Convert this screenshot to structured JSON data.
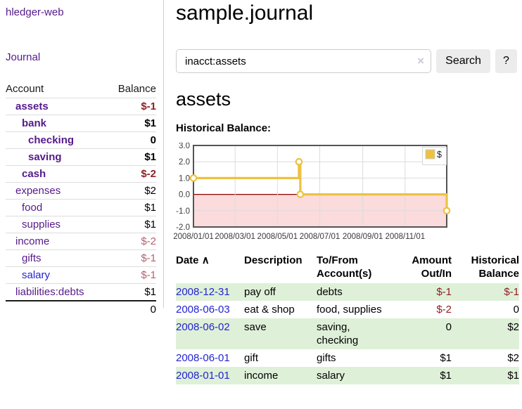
{
  "app": {
    "brand": "hledger-web"
  },
  "colors": {
    "link_purple": "#551a8b",
    "link_blue": "#2323d3",
    "neg_strong": "#8f1f27",
    "neg_soft": "#b2636e",
    "stripe_green": "#dff0d8",
    "series_gold": "#edc240"
  },
  "sidebar": {
    "nav_journal": "Journal",
    "table": {
      "headers": [
        "Account",
        "Balance"
      ],
      "accounts": [
        {
          "name": "assets",
          "balance": "$-1",
          "depth": 0,
          "bold": true,
          "value_tone": "neg_strong",
          "link_tone": "purple"
        },
        {
          "name": "bank",
          "balance": "$1",
          "depth": 1,
          "bold": true,
          "value_tone": "plain",
          "link_tone": "purple"
        },
        {
          "name": "checking",
          "balance": "0",
          "depth": 2,
          "bold": true,
          "value_tone": "plain",
          "link_tone": "purple"
        },
        {
          "name": "saving",
          "balance": "$1",
          "depth": 2,
          "bold": true,
          "value_tone": "plain",
          "link_tone": "purple"
        },
        {
          "name": "cash",
          "balance": "$-2",
          "depth": 1,
          "bold": true,
          "value_tone": "neg_strong",
          "link_tone": "purple"
        },
        {
          "name": "expenses",
          "balance": "$2",
          "depth": 0,
          "bold": false,
          "value_tone": "plain",
          "link_tone": "purple"
        },
        {
          "name": "food",
          "balance": "$1",
          "depth": 1,
          "bold": false,
          "value_tone": "plain",
          "link_tone": "purple"
        },
        {
          "name": "supplies",
          "balance": "$1",
          "depth": 1,
          "bold": false,
          "value_tone": "plain",
          "link_tone": "purple"
        },
        {
          "name": "income",
          "balance": "$-2",
          "depth": 0,
          "bold": false,
          "value_tone": "neg_soft",
          "link_tone": "purple"
        },
        {
          "name": "gifts",
          "balance": "$-1",
          "depth": 1,
          "bold": false,
          "value_tone": "neg_soft",
          "link_tone": "purple"
        },
        {
          "name": "salary",
          "balance": "$-1",
          "depth": 1,
          "bold": false,
          "value_tone": "neg_soft",
          "link_tone": "blue"
        },
        {
          "name": "liabilities:debts",
          "balance": "$1",
          "depth": 0,
          "bold": false,
          "value_tone": "plain",
          "link_tone": "purple"
        }
      ],
      "total": "0"
    }
  },
  "header": {
    "title": "sample.journal"
  },
  "search": {
    "value": "inacct:assets",
    "clear_icon": "×",
    "button_label": "Search",
    "help_label": "?"
  },
  "account_page": {
    "heading": "assets",
    "chart_caption": "Historical Balance:"
  },
  "chart_data": {
    "type": "line",
    "step": true,
    "title": "Historical Balance",
    "legend": [
      {
        "label": "$",
        "color": "#edc240"
      }
    ],
    "x_start": "2008-01-01",
    "x_end": "2008-12-31",
    "x_ticks": [
      {
        "date": "2008-01-01",
        "label": "2008/01/01"
      },
      {
        "date": "2008-03-01",
        "label": "2008/03/01"
      },
      {
        "date": "2008-05-01",
        "label": "2008/05/01"
      },
      {
        "date": "2008-07-01",
        "label": "2008/07/01"
      },
      {
        "date": "2008-09-01",
        "label": "2008/09/01"
      },
      {
        "date": "2008-11-01",
        "label": "2008/11/01"
      }
    ],
    "y_ticks": [
      3.0,
      2.0,
      1.0,
      0.0,
      -1.0,
      -2.0
    ],
    "ylim": [
      -2,
      3
    ],
    "series": [
      {
        "name": "$",
        "color": "#edc240",
        "points": [
          {
            "date": "2008-01-01",
            "value": 1
          },
          {
            "date": "2008-06-01",
            "value": 2
          },
          {
            "date": "2008-06-03",
            "value": 0
          },
          {
            "date": "2008-12-31",
            "value": -1
          }
        ]
      }
    ],
    "negative_region_color": "#fbdbdb",
    "zero_line_color": "#8b0000",
    "grid_color": "#dcdcdc",
    "border_color": "#545454"
  },
  "register": {
    "sort_caret": "∧",
    "headers": {
      "date": "Date",
      "description": "Description",
      "tofrom": "To/From Account(s)",
      "amount": "Amount Out/In",
      "balance": "Historical Balance"
    },
    "rows": [
      {
        "date": "2008-12-31",
        "description": "pay off",
        "tofrom": [
          "debts"
        ],
        "amount": "$-1",
        "amount_neg": true,
        "balance": "$-1",
        "balance_neg": true
      },
      {
        "date": "2008-06-03",
        "description": "eat & shop",
        "tofrom": [
          "food, supplies"
        ],
        "amount": "$-2",
        "amount_neg": true,
        "balance": "0",
        "balance_neg": false
      },
      {
        "date": "2008-06-02",
        "description": "save",
        "tofrom": [
          "saving,",
          "checking"
        ],
        "amount": "0",
        "amount_neg": false,
        "balance": "$2",
        "balance_neg": false
      },
      {
        "date": "2008-06-01",
        "description": "gift",
        "tofrom": [
          "gifts"
        ],
        "amount": "$1",
        "amount_neg": false,
        "balance": "$2",
        "balance_neg": false
      },
      {
        "date": "2008-01-01",
        "description": "income",
        "tofrom": [
          "salary"
        ],
        "amount": "$1",
        "amount_neg": false,
        "balance": "$1",
        "balance_neg": false
      }
    ]
  }
}
